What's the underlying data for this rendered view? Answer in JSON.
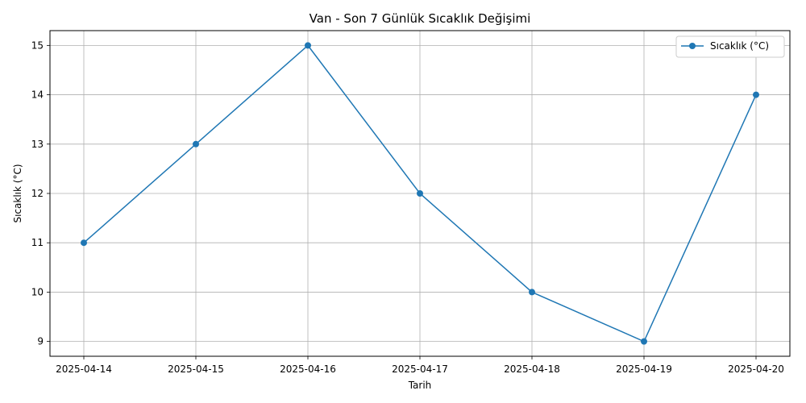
{
  "chart_data": {
    "type": "line",
    "title": "Van - Son 7 Günlük Sıcaklık Değişimi",
    "xlabel": "Tarih",
    "ylabel": "Sıcaklık (°C)",
    "categories": [
      "2025-04-14",
      "2025-04-15",
      "2025-04-16",
      "2025-04-17",
      "2025-04-18",
      "2025-04-19",
      "2025-04-20"
    ],
    "series": [
      {
        "name": "Sıcaklık (°C)",
        "values": [
          11,
          13,
          15,
          12,
          10,
          9,
          14
        ],
        "color": "#1f77b4",
        "marker": "circle"
      }
    ],
    "yticks": [
      9,
      10,
      11,
      12,
      13,
      14,
      15
    ],
    "ylim": [
      8.7,
      15.3
    ],
    "grid": true,
    "legend": "top-right"
  }
}
